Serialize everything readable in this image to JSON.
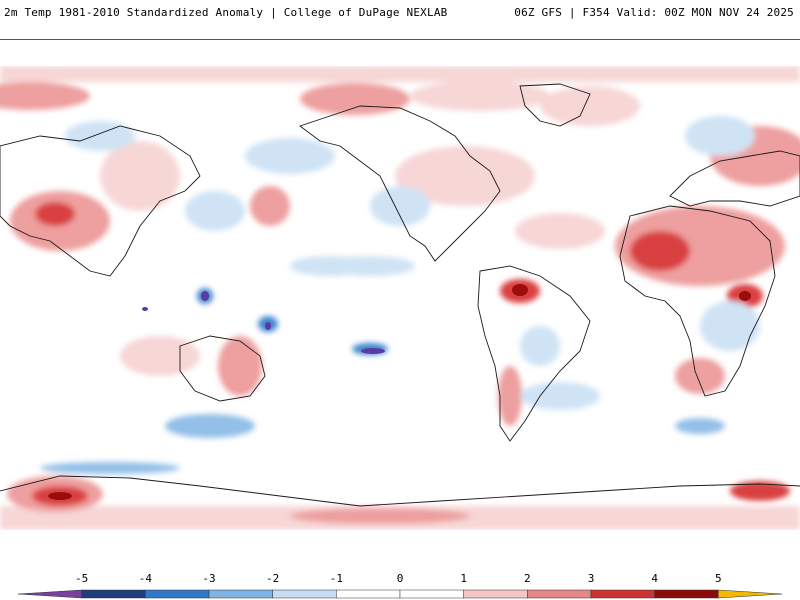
{
  "header": {
    "title": "2m Temp 1981-2010 Standardized Anomaly | College of DuPage NEXLAB",
    "run_info": "06Z GFS | F354 Valid: 00Z MON NOV 24 2025"
  },
  "colorbar": {
    "tick_labels": [
      "-5",
      "-4",
      "-3",
      "-2",
      "-1",
      "0",
      "1",
      "2",
      "3",
      "4",
      "5"
    ],
    "tick_values": [
      -5,
      -4,
      -3,
      -2,
      -1,
      0,
      1,
      2,
      3,
      4,
      5
    ],
    "min": -6,
    "max": 6,
    "colors": [
      "#7b3f9e",
      "#1f3d7a",
      "#2f79c7",
      "#7fb3e3",
      "#c6ddf2",
      "#ffffff",
      "#ffffff",
      "#f5c6c6",
      "#e48888",
      "#cc3333",
      "#8b0a0a",
      "#f5b800"
    ]
  },
  "palette": {
    "warm_light": "#f7d6d6",
    "warm_mid": "#ee9f9f",
    "warm_strong": "#d94141",
    "warm_extreme": "#9b0d0d",
    "cool_light": "#cfe3f5",
    "cool_mid": "#93bfe8",
    "cool_strong": "#3f86cf",
    "cool_extreme": "#5b3aa3",
    "coast": "#1a1a1a"
  }
}
